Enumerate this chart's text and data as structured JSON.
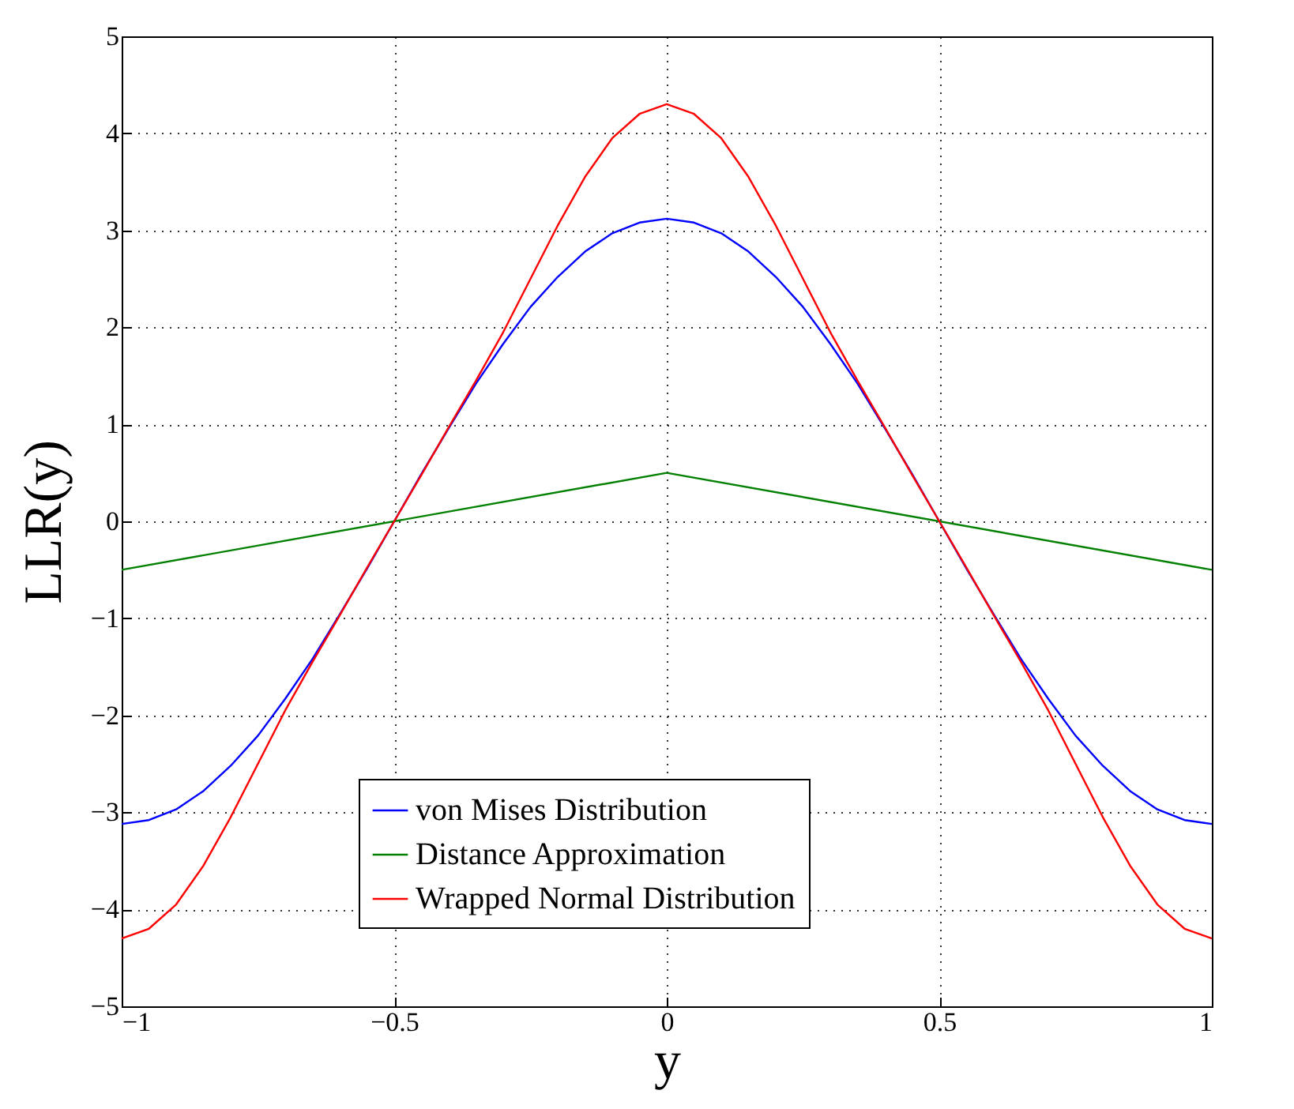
{
  "chart_data": {
    "type": "line",
    "xlabel": "y",
    "ylabel": "LLR(y)",
    "xlim": [
      -1,
      1
    ],
    "ylim": [
      -5,
      5
    ],
    "xticks": [
      {
        "value": -1,
        "label": "−1"
      },
      {
        "value": -0.5,
        "label": "−0.5"
      },
      0,
      0.5,
      1
    ],
    "yticks": [
      {
        "value": -5,
        "label": "−5"
      },
      {
        "value": -4,
        "label": "−4"
      },
      {
        "value": -3,
        "label": "−3"
      },
      {
        "value": -2,
        "label": "−2"
      },
      {
        "value": -1,
        "label": "−1"
      },
      0,
      1,
      2,
      3,
      4,
      5
    ],
    "grid": true,
    "legend": "bottom",
    "line_style": "solid",
    "marker": "none",
    "x": [
      -1,
      -0.95,
      -0.9,
      -0.85,
      -0.8,
      -0.75,
      -0.7,
      -0.65,
      -0.6,
      -0.55,
      -0.5,
      -0.45,
      -0.4,
      -0.35,
      -0.3,
      -0.25,
      -0.2,
      -0.15,
      -0.1,
      -0.05,
      0,
      0.05,
      0.1,
      0.15,
      0.2,
      0.25,
      0.3,
      0.35,
      0.4,
      0.45,
      0.5,
      0.55,
      0.6,
      0.65,
      0.7,
      0.75,
      0.8,
      0.85,
      0.9,
      0.95,
      1
    ],
    "series": [
      {
        "name": "von Mises Distribution",
        "color": "#0000ff",
        "values": [
          -3.12,
          -3.08,
          -2.97,
          -2.78,
          -2.52,
          -2.21,
          -1.83,
          -1.42,
          -0.96,
          -0.49,
          0,
          0.49,
          0.96,
          1.42,
          1.83,
          2.21,
          2.52,
          2.78,
          2.97,
          3.08,
          3.12,
          3.08,
          2.97,
          2.78,
          2.52,
          2.21,
          1.83,
          1.42,
          0.96,
          0.49,
          0,
          -0.49,
          -0.96,
          -1.42,
          -1.83,
          -2.21,
          -2.52,
          -2.78,
          -2.97,
          -3.08,
          -3.12
        ]
      },
      {
        "name": "Distance Approximation",
        "color": "#008000",
        "x": [
          -1,
          0,
          1
        ],
        "values": [
          -0.5,
          0.5,
          -0.5
        ]
      },
      {
        "name": "Wrapped Normal Distribution",
        "color": "#ff0000",
        "values": [
          -4.3,
          -4.2,
          -3.95,
          -3.55,
          -3.05,
          -2.5,
          -1.95,
          -1.45,
          -0.97,
          -0.48,
          0,
          0.48,
          0.97,
          1.45,
          1.95,
          2.5,
          3.05,
          3.55,
          3.95,
          4.2,
          4.3,
          4.2,
          3.95,
          3.55,
          3.05,
          2.5,
          1.95,
          1.45,
          0.97,
          0.48,
          0,
          -0.48,
          -0.97,
          -1.45,
          -1.95,
          -2.5,
          -3.05,
          -3.55,
          -3.95,
          -4.2,
          -4.3
        ]
      }
    ]
  }
}
